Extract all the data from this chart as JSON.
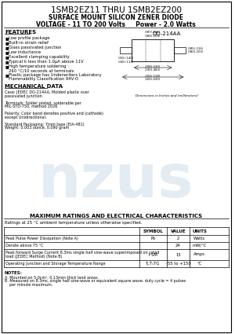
{
  "title_line1": "1SMB2EZ11 THRU 1SMB2EZ200",
  "title_line2": "SURFACE MOUNT SILICON ZENER DIODE",
  "title_line3": "VOLTAGE - 11 TO 200 Volts     Power - 2.0 Watts",
  "features_title": "FEATURES",
  "features": [
    "Low profile package",
    "Built-in strain relief",
    "Glass passivated junction",
    "Low inductance",
    "Excellent clamping capability",
    "Typical I₀ less than 1.0μA above 11V",
    "High temperature soldering :\n260 °C/10 seconds at terminals",
    "Plastic package has Underwriters Laboratory\nFlammability Classification 94V-O"
  ],
  "mech_title": "MECHANICAL DATA",
  "mech_lines": [
    "Case: JEDEC DO-214AA, Molded plastic over",
    "passivated junction",
    "",
    "Terminals: Solder plated, solderable per",
    "MIL-STD-750, method 2026",
    "",
    "Polarity: Color band denotes positive and (cathode)",
    "except Unidirectional.",
    "",
    "Standard Packaging: 7mm tape (EIA-481)",
    "Weight: 0.003 ounce, 0.090 gram"
  ],
  "table_title": "MAXIMUM RATINGS AND ELECTRICAL CHARACTERISTICS",
  "table_note": "Ratings at 25 °C ambient temperature unless otherwise specified.",
  "table_headers": [
    "",
    "SYMBOL",
    "VALUE",
    "UNITS"
  ],
  "table_rows": [
    [
      "Peak Pulse Power Dissipation (Note A)",
      "Pᴅ",
      "2",
      "Watts"
    ],
    [
      "Derate above 75 °C",
      "",
      "24",
      "mW/°C"
    ],
    [
      "Peak forward Surge Current 8.3ms single half sine-wave superimposed on rated\nload (JEDEC Method) (Note B)",
      "IᴺSM",
      "15",
      "Amps"
    ],
    [
      "Operating Junction and Storage Temperature Range",
      "Tⱼ,TₛTG",
      "-55 to +150",
      "°C"
    ]
  ],
  "notes_title": "NOTES:",
  "notes": [
    "A. Mounted on 5.0cm², 0.13mm thick land areas.",
    "B. Measured on 8.3ms, single half sine-wave or equivalent square wave, duty cycle = 4 pulses\n    per minute maximum."
  ],
  "package_label": "DO-214AA",
  "dim_note": "Dimensions in Inches and (millimeters)",
  "watermark": "nzus",
  "bg_color": "#ffffff",
  "border_color": "#000000",
  "text_color": "#000000",
  "table_line_color": "#000000",
  "watermark_color": "#c8d8e8"
}
